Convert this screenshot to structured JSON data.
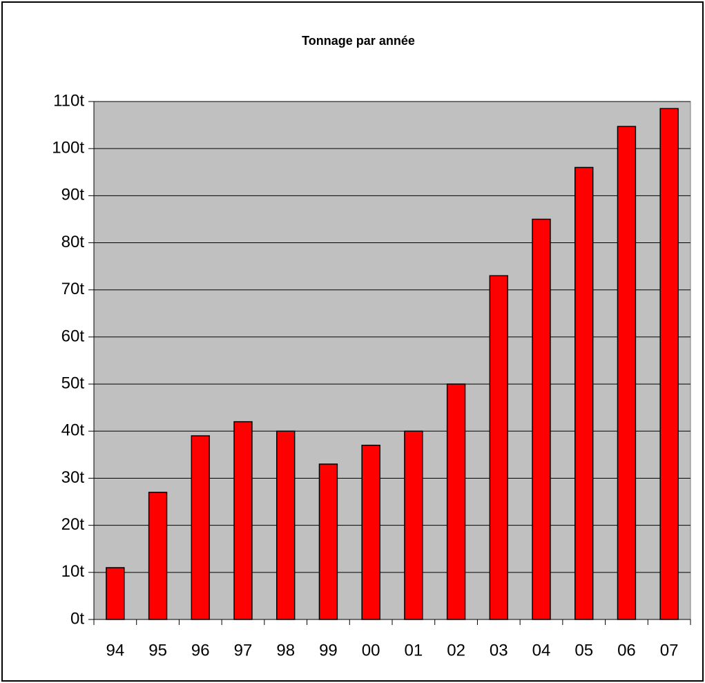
{
  "chart_data": {
    "type": "bar",
    "title": "Tonnage par année",
    "categories": [
      "94",
      "95",
      "96",
      "97",
      "98",
      "99",
      "00",
      "01",
      "02",
      "03",
      "04",
      "05",
      "06",
      "07"
    ],
    "values": [
      11,
      27,
      39,
      42,
      40,
      33,
      37,
      40,
      50,
      73,
      85,
      96,
      104.7,
      108.5
    ],
    "color": "#ff0000",
    "ylim": [
      0,
      110
    ],
    "yticks": [
      {
        "value": 0,
        "label": "0t"
      },
      {
        "value": 10,
        "label": "10t"
      },
      {
        "value": 20,
        "label": "20t"
      },
      {
        "value": 30,
        "label": "30t"
      },
      {
        "value": 40,
        "label": "40t"
      },
      {
        "value": 50,
        "label": "50t"
      },
      {
        "value": 60,
        "label": "60t"
      },
      {
        "value": 70,
        "label": "70t"
      },
      {
        "value": 80,
        "label": "80t"
      },
      {
        "value": 90,
        "label": "90t"
      },
      {
        "value": 100,
        "label": "100t"
      },
      {
        "value": 110,
        "label": "110t"
      }
    ],
    "grid": true
  }
}
